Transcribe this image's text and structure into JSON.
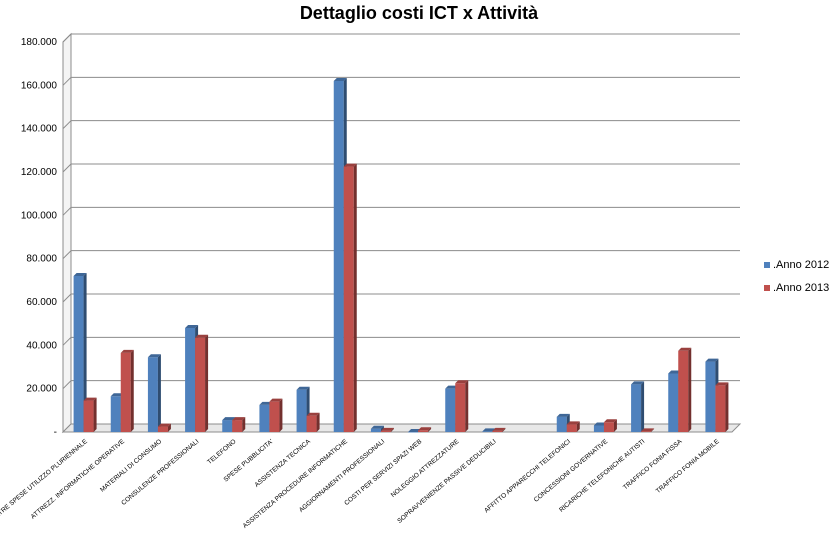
{
  "chart_data": {
    "type": "bar",
    "title": "Dettaglio costi ICT x Attività",
    "xlabel": "",
    "ylabel": "",
    "ylim": [
      0,
      180000
    ],
    "yticks": [
      "-",
      "20.000",
      "40.000",
      "60.000",
      "80.000",
      "100.000",
      "120.000",
      "140.000",
      "160.000",
      "180.000"
    ],
    "ytick_values": [
      0,
      20000,
      40000,
      60000,
      80000,
      100000,
      120000,
      140000,
      160000,
      180000
    ],
    "grid": true,
    "legend_position": "right",
    "categories": [
      "ALTRE SPESE UTILIZZO PLURIENNALE",
      "ATTREZZ. INFORMATICHE OPERATIVE",
      "MATERIALI DI CONSUMO",
      "CONSULENZE PROFESSIONALI",
      "TELEFONO",
      "SPESE PUBBLICITA'",
      "ASSISTENZA TECNICA",
      "ASSISTENZA PROCEDURE INFORMATICHE",
      "AGGIORNAMENTI PROFESSIONALI",
      "COSTI PER SERVIZI SPAZI WEB",
      "NOLEGGIO ATTREZZATURE",
      "SOPRAVVENIENZE PASSIVE DEDUCIBILI",
      "",
      "AFFITTO APPARECCHI TELEFONICI",
      "CONCESSIONI GOVERNATIVE",
      "RICARICHE TELEFONICHE AUTISTI",
      "TRAFFICO FONIA FISSA",
      "TRAFFICO FONIA MOBILE"
    ],
    "series": [
      {
        "name": ".Anno 2012",
        "color": "#4F81BD",
        "values": [
          72000,
          16500,
          34500,
          48000,
          5500,
          12500,
          19500,
          162000,
          1500,
          0,
          20000,
          300,
          null,
          7000,
          3000,
          22000,
          27000,
          32500
        ]
      },
      {
        "name": ".Anno 2013",
        "color": "#C0504D",
        "values": [
          14500,
          36500,
          2500,
          43500,
          5500,
          14000,
          7500,
          122500,
          500,
          800,
          22500,
          500,
          null,
          3500,
          4500,
          300,
          37500,
          21500
        ]
      }
    ]
  }
}
